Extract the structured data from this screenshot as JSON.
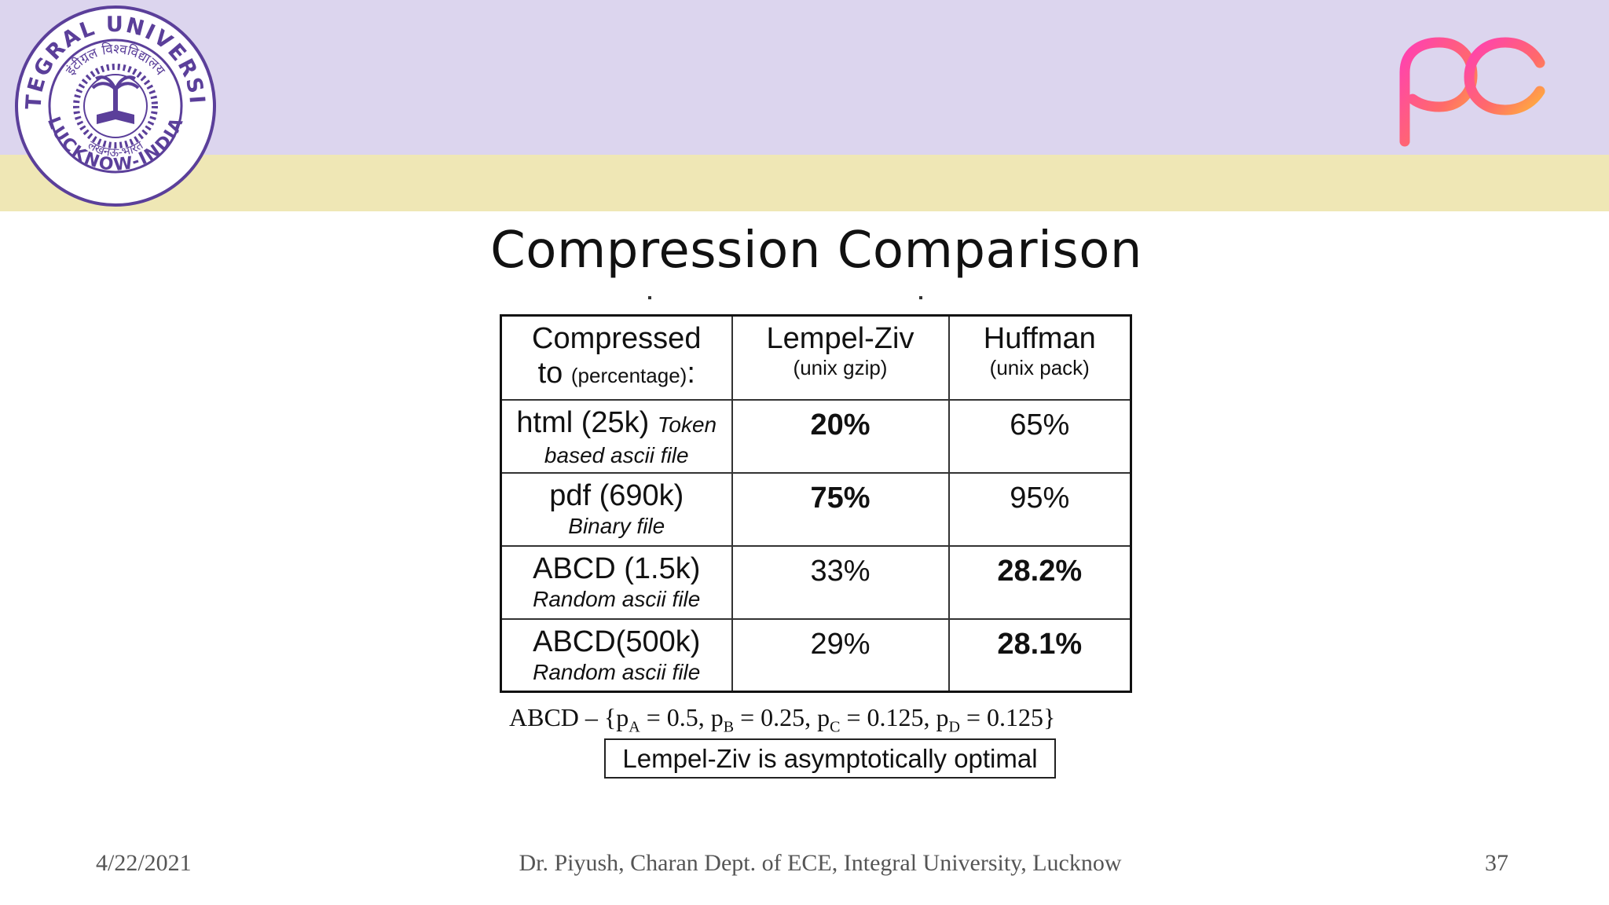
{
  "header": {
    "logo_left": {
      "icon": "integral-university-seal",
      "top_text": "INTEGRAL UNIVERSITY",
      "hindi_text": "इंटीग्रल विश्वविद्यालय",
      "bottom_text": "LUCKNOW-INDIA",
      "bottom_hindi": "लखनऊ-भारत",
      "color": "#5b3f9a"
    },
    "logo_right": {
      "icon": "pc-logo"
    },
    "colors": {
      "top_band": "#dcd5ee",
      "bottom_band": "#efe7b5"
    }
  },
  "slide": {
    "title": "Compression Comparison",
    "table": {
      "header": {
        "col1_main": "Compressed",
        "col1_line2": "to",
        "col1_small": "(percentage)",
        "col1_colon": ":",
        "col2_main": "Lempel-Ziv",
        "col2_sub": "(unix gzip)",
        "col3_main": "Huffman",
        "col3_sub": "(unix pack)"
      },
      "rows": [
        {
          "label": "html (25k)",
          "inline_note": "Token",
          "sub": "based ascii file",
          "lz": "20%",
          "huff": "65%"
        },
        {
          "label": "pdf (690k)",
          "sub": "Binary file",
          "lz": "75%",
          "huff": "95%"
        },
        {
          "label": "ABCD (1.5k)",
          "sub": "Random ascii file",
          "lz": "33%",
          "huff": "28.2%"
        },
        {
          "label": "ABCD(500k)",
          "sub": "Random ascii file",
          "lz": "29%",
          "huff": "28.1%"
        }
      ]
    },
    "formula": {
      "prefix": "ABCD – {p",
      "sub_a": "A",
      "val_a": " = 0.5, p",
      "sub_b": "B",
      "val_b": " = 0.25, p",
      "sub_c": "C",
      "val_c": " = 0.125, p",
      "sub_d": "D",
      "val_d": " = 0.125}"
    },
    "note": "Lempel-Ziv is asymptotically optimal"
  },
  "footer": {
    "date": "4/22/2021",
    "author": "Dr. Piyush, Charan Dept. of ECE, Integral University, Lucknow",
    "page": "37"
  }
}
